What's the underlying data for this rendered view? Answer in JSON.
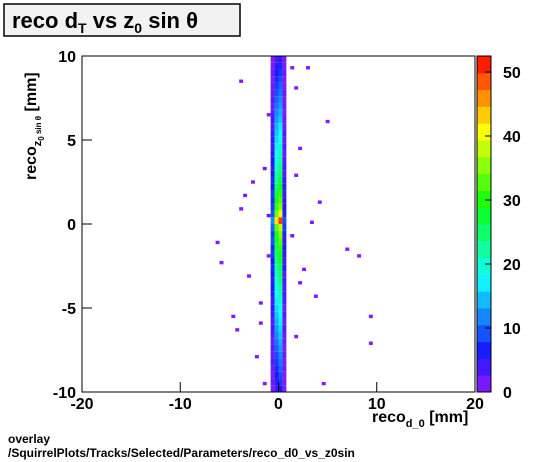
{
  "chart_data": {
    "type": "heatmap",
    "title": [
      "reco d",
      "T",
      " vs z",
      "0",
      " sin  θ"
    ],
    "x_label": [
      "reco",
      "d_0",
      " [mm]"
    ],
    "y_label": [
      "reco",
      "z",
      "0",
      " sin  θ",
      " [mm]"
    ],
    "footer": [
      "overlay",
      "/SquirrelPlots/Tracks/Selected/Parameters/reco_d0_vs_z0sin"
    ],
    "xlim": [
      -20,
      20
    ],
    "ylim": [
      -10,
      10
    ],
    "zlim": [
      0,
      52.5
    ],
    "xticks": [
      -20,
      -10,
      0,
      10,
      20
    ],
    "yticks": [
      -10,
      -5,
      0,
      5,
      10
    ],
    "zticks": [
      0,
      10,
      20,
      30,
      40,
      50
    ],
    "ybins": [
      -10,
      -9.6,
      -9.2,
      -8.8,
      -8.4,
      -8,
      -7.6,
      -7.2,
      -6.8,
      -6.4,
      -6,
      -5.6,
      -5.2,
      -4.8,
      -4.4,
      -4,
      -3.6,
      -3.2,
      -2.8,
      -2.4,
      -2,
      -1.6,
      -1.2,
      -0.8,
      -0.4,
      0,
      0.4,
      0.8,
      1.2,
      1.6,
      2,
      2.4,
      2.8,
      3.2,
      3.6,
      4,
      4.4,
      4.8,
      5.2,
      5.6,
      6,
      6.4,
      6.8,
      7.2,
      7.6,
      8,
      8.4,
      8.8,
      9.2,
      9.6
    ],
    "columns": [
      {
        "x": -0.8,
        "values": [
          1,
          2,
          1,
          2,
          3,
          2,
          3,
          2,
          3,
          4,
          3,
          4,
          5,
          4,
          5,
          6,
          5,
          6,
          7,
          6,
          8,
          7,
          9,
          8,
          10,
          12,
          9,
          8,
          7,
          8,
          6,
          7,
          6,
          5,
          6,
          5,
          4,
          5,
          4,
          3,
          4,
          3,
          2,
          3,
          2,
          2,
          1,
          2,
          1,
          1
        ]
      },
      {
        "x": -0.4,
        "values": [
          4,
          5,
          6,
          7,
          8,
          9,
          10,
          11,
          12,
          13,
          14,
          15,
          16,
          17,
          18,
          19,
          20,
          21,
          22,
          24,
          25,
          27,
          28,
          30,
          33,
          42,
          34,
          31,
          29,
          27,
          25,
          23,
          22,
          20,
          19,
          18,
          17,
          16,
          15,
          14,
          13,
          12,
          11,
          10,
          9,
          8,
          7,
          6,
          5,
          4
        ]
      },
      {
        "x": 0,
        "values": [
          6,
          8,
          9,
          10,
          11,
          12,
          13,
          14,
          15,
          16,
          17,
          18,
          19,
          20,
          21,
          22,
          24,
          25,
          26,
          28,
          30,
          31,
          33,
          35,
          38,
          50,
          40,
          36,
          33,
          31,
          29,
          27,
          25,
          24,
          22,
          21,
          20,
          19,
          18,
          17,
          15,
          14,
          13,
          12,
          11,
          10,
          9,
          8,
          7,
          5
        ]
      },
      {
        "x": 0.4,
        "values": [
          1,
          1,
          1,
          2,
          1,
          2,
          1,
          2,
          2,
          3,
          2,
          3,
          2,
          3,
          4,
          3,
          4,
          3,
          5,
          4,
          5,
          6,
          5,
          7,
          8,
          9,
          7,
          6,
          5,
          4,
          5,
          4,
          3,
          4,
          3,
          2,
          3,
          2,
          3,
          2,
          2,
          1,
          2,
          1,
          2,
          1,
          1,
          2,
          1,
          1
        ]
      }
    ],
    "scatter": {
      "x": [
        -6.4,
        -6.0,
        -4.8,
        -4.4,
        -4.0,
        -3.6,
        -3.2,
        -2.8,
        -2.4,
        -2.0,
        -1.6,
        -1.6,
        -1.2,
        -1.2,
        -1.2,
        1.2,
        1.2,
        1.6,
        1.6,
        2.0,
        2.4,
        2.8,
        3.2,
        3.6,
        4.0,
        4.4,
        4.8,
        6.8,
        8.0,
        9.2,
        9.2,
        -4.0,
        1.6,
        2.0,
        -2.0
      ],
      "y": [
        -1.2,
        -2.4,
        -5.6,
        -6.4,
        0.8,
        1.6,
        -3.2,
        2.4,
        -8.0,
        -4.8,
        3.2,
        -9.6,
        0.4,
        -2.0,
        6.4,
        9.2,
        -0.8,
        8.0,
        -6.8,
        4.4,
        -2.8,
        9.2,
        0.0,
        -4.4,
        1.2,
        -9.6,
        6.0,
        -1.6,
        -2.0,
        -5.6,
        -7.2,
        8.4,
        2.8,
        -3.6,
        -6.0
      ],
      "values": [
        1,
        1,
        1,
        1,
        1,
        1,
        1,
        1,
        1,
        1,
        2,
        1,
        2,
        1,
        1,
        1,
        2,
        1,
        1,
        1,
        1,
        1,
        1,
        1,
        1,
        1,
        1,
        1,
        1,
        1,
        1,
        1,
        1,
        1,
        1
      ]
    }
  }
}
